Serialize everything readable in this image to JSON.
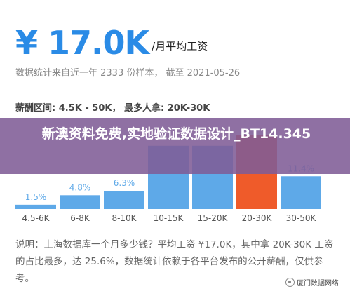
{
  "header": {
    "salary": "¥ 17.0K",
    "unit": "/月平均工资"
  },
  "stats_text": "数据统计来自近一年 2333 份样本， 截至 2021-05-26",
  "range_text": "薪酬区间: 4.5K - 50K， 最多人拿: 20K-30K",
  "banner": {
    "text": "新澳资料免费,实地验证数据设计_BT14.345",
    "background": "#805c96"
  },
  "chart_data": {
    "type": "bar",
    "categories": [
      "4.5-6K",
      "6-8K",
      "8-10K",
      "10-15K",
      "15-20K",
      "20-30K",
      "30-50K"
    ],
    "values": [
      1.5,
      4.8,
      6.3,
      22,
      22,
      25.6,
      11.4
    ],
    "value_labels": [
      "1.5%",
      "4.8%",
      "6.3%",
      "",
      "",
      "",
      "11.4%"
    ],
    "highlight_index": 5,
    "colors": {
      "bar": "#5ea9e8",
      "highlight": "#ef5b2a",
      "label": "#5ea9e8",
      "highlight_label": "#ef5b2a",
      "axis_text": "#555555"
    }
  },
  "note": "说明：上海数据库一个月多少钱？平均工资 ¥17.0K，其中拿 20K-30K 工资的占比最多，达 25.6%，数据统计依赖于各平台发布的公开薪酬，仅供参考。",
  "watermark": {
    "icon": "wechat-channel-icon",
    "text": "厦门数据网络"
  }
}
